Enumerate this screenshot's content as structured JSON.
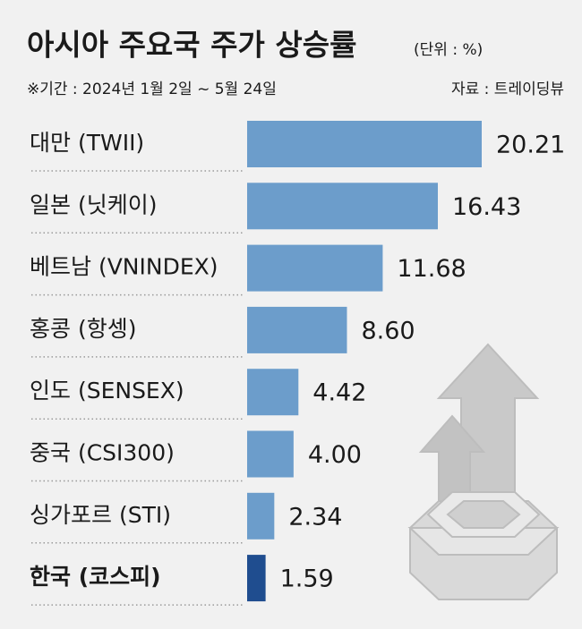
{
  "chart_data": {
    "type": "bar",
    "orientation": "horizontal",
    "title": "아시아 주요국 주가 상승률",
    "unit": "(단위 : %)",
    "subtitle": "※기간 : 2024년 1월 2일 ~ 5월 24일",
    "source": "자료 : 트레이딩뷰",
    "categories": [
      "대만 (TWII)",
      "일본 (닛케이)",
      "베트남 (VNINDEX)",
      "홍콩 (항셍)",
      "인도 (SENSEX)",
      "중국 (CSI300)",
      "싱가포르 (STI)",
      "한국 (코스피)"
    ],
    "values": [
      20.21,
      16.43,
      11.68,
      8.6,
      4.42,
      4,
      2.34,
      1.59
    ],
    "value_labels": [
      "20.21",
      "16.43",
      "11.68",
      "8.60",
      "4.42",
      "4.00",
      "2.34",
      "1.59"
    ],
    "colors": [
      "#6c9dcb",
      "#6c9dcb",
      "#6c9dcb",
      "#6c9dcb",
      "#6c9dcb",
      "#6c9dcb",
      "#6c9dcb",
      "#1f4d8f"
    ]
  }
}
